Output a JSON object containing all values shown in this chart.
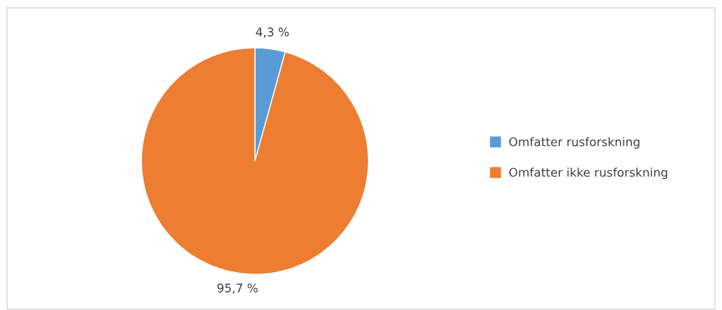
{
  "chart_data": {
    "type": "pie",
    "categories": [
      "Omfatter rusforskning",
      "Omfatter ikke rusforskning"
    ],
    "values": [
      4.3,
      95.7
    ],
    "colors": [
      "#5b9bd5",
      "#ed7d31"
    ],
    "value_labels": [
      "4,3 %",
      "95,7 %"
    ],
    "legend": "right"
  }
}
